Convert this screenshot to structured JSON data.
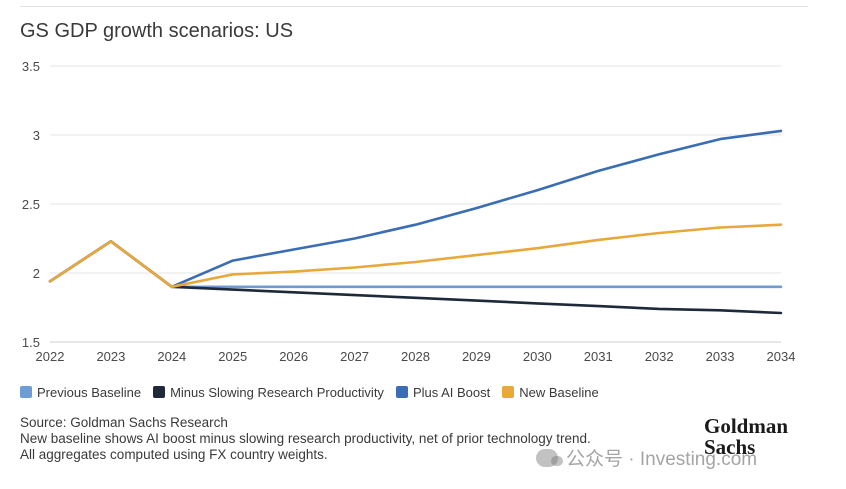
{
  "title": "GS GDP growth scenarios: US",
  "chart_data": {
    "type": "line",
    "title": "GS GDP growth scenarios: US",
    "xlabel": "",
    "ylabel": "",
    "x": [
      2022,
      2023,
      2024,
      2025,
      2026,
      2027,
      2028,
      2029,
      2030,
      2031,
      2032,
      2033,
      2034
    ],
    "ylim": [
      1.5,
      3.5
    ],
    "yticks": [
      1.5,
      2,
      2.5,
      3,
      3.5
    ],
    "ytick_labels": [
      "1.5",
      "2",
      "2.5",
      "3",
      "3.5"
    ],
    "xtick_labels": [
      "2022",
      "2023",
      "2024",
      "2025",
      "2026",
      "2027",
      "2028",
      "2029",
      "2030",
      "2031",
      "2032",
      "2033",
      "2034"
    ],
    "grid": "horizontal",
    "legend_position": "bottom",
    "series": [
      {
        "name": "Previous Baseline",
        "color": "#6f9bd6",
        "values": [
          1.94,
          2.23,
          1.9,
          1.9,
          1.9,
          1.9,
          1.9,
          1.9,
          1.9,
          1.9,
          1.9,
          1.9,
          1.9
        ]
      },
      {
        "name": "Minus Slowing Research Productivity",
        "color": "#1e2a3a",
        "values": [
          1.94,
          2.23,
          1.9,
          1.88,
          1.86,
          1.84,
          1.82,
          1.8,
          1.78,
          1.76,
          1.74,
          1.73,
          1.71
        ]
      },
      {
        "name": "Plus AI Boost",
        "color": "#3b6db5",
        "values": [
          1.94,
          2.23,
          1.9,
          2.09,
          2.17,
          2.25,
          2.35,
          2.47,
          2.6,
          2.74,
          2.86,
          2.97,
          3.03
        ]
      },
      {
        "name": "New Baseline",
        "color": "#e8a83a",
        "values": [
          1.94,
          2.23,
          1.9,
          1.99,
          2.01,
          2.04,
          2.08,
          2.13,
          2.18,
          2.24,
          2.29,
          2.33,
          2.35
        ]
      }
    ]
  },
  "notes": {
    "line1": "Source: Goldman Sachs Research",
    "line2": "New baseline shows AI boost minus slowing research productivity, net of prior technology trend.",
    "line3": "All aggregates computed using FX country weights."
  },
  "logo": {
    "line1": "Goldman",
    "line2": "Sachs"
  },
  "watermark": "公众号 · Investing.com",
  "colors": {
    "grid": "#e6e6e6",
    "axis": "#cccccc"
  }
}
